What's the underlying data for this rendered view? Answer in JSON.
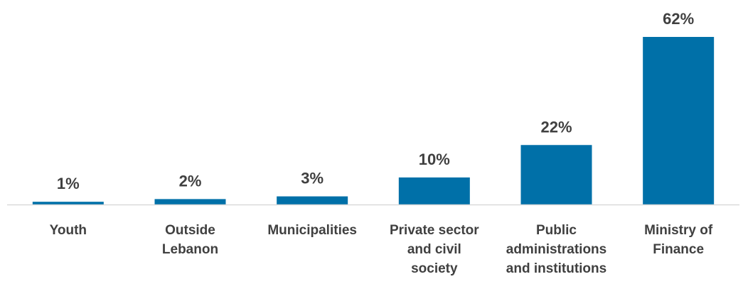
{
  "chart_data": {
    "type": "bar",
    "categories": [
      [
        "Youth"
      ],
      [
        "Outside",
        "Lebanon"
      ],
      [
        "Municipalities"
      ],
      [
        "Private sector",
        "and civil",
        "society"
      ],
      [
        "Public",
        "administrations",
        "and institutions"
      ],
      [
        "Ministry of",
        "Finance"
      ]
    ],
    "values": [
      1,
      2,
      3,
      10,
      22,
      62
    ],
    "data_labels": [
      "1%",
      "2%",
      "3%",
      "10%",
      "22%",
      "62%"
    ],
    "ylim": [
      0,
      62
    ],
    "grid": false,
    "legend": "none",
    "colors": {
      "bar": "#0070A8",
      "axis": "#D9D9D9",
      "text": "#404040"
    }
  }
}
